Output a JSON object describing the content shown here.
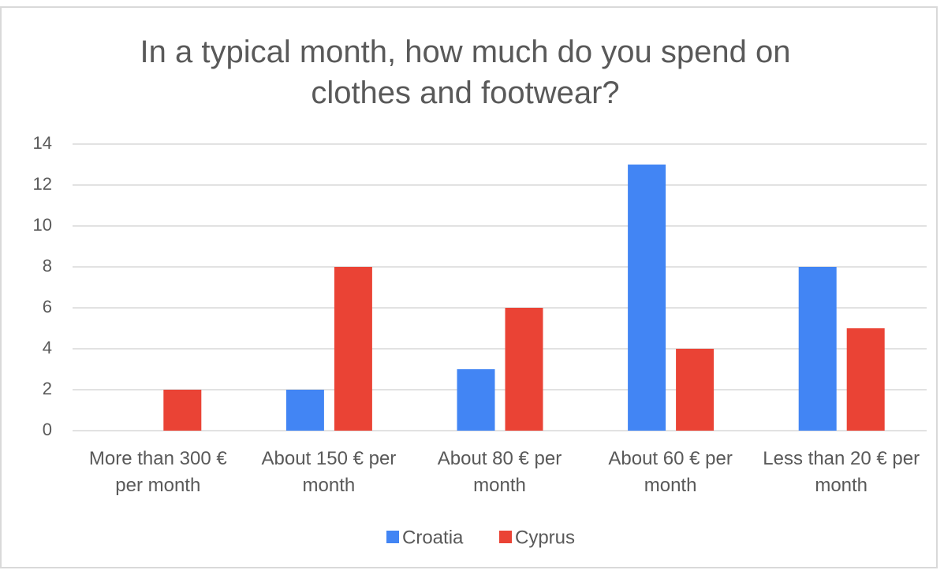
{
  "chart_data": {
    "type": "bar",
    "title": "In a typical month, how much do you spend on clothes and footwear?",
    "categories": [
      "More than 300 € per month",
      "About 150 € per month",
      "About 80 € per month",
      "About 60 € per month",
      "Less than 20 € per month"
    ],
    "series": [
      {
        "name": "Croatia",
        "color": "#4285f4",
        "values": [
          0,
          2,
          3,
          13,
          8
        ]
      },
      {
        "name": "Cyprus",
        "color": "#ea4335",
        "values": [
          2,
          8,
          6,
          4,
          5
        ]
      }
    ],
    "ylim": [
      0,
      14
    ],
    "yticks": [
      0,
      2,
      4,
      6,
      8,
      10,
      12,
      14
    ],
    "grid": true,
    "legend": "bottom"
  }
}
